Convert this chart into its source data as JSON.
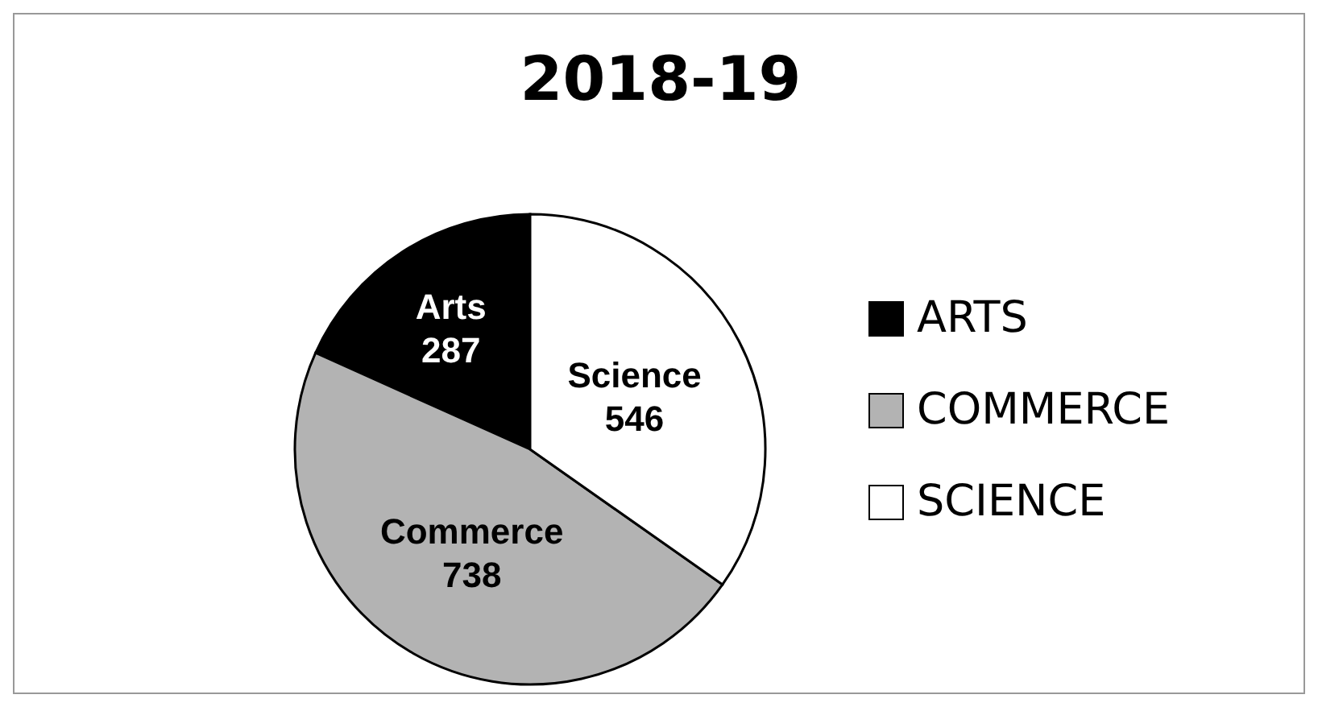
{
  "chart_data": {
    "type": "pie",
    "title": "2018-19",
    "categories": [
      "ARTS",
      "COMMERCE",
      "SCIENCE"
    ],
    "values": [
      287,
      738,
      546
    ],
    "colors": [
      "#000000",
      "#b3b3b3",
      "#ffffff"
    ],
    "value_labels": [
      "Arts\n287",
      "Commerce\n738",
      "Science\n546"
    ],
    "legend": "right"
  }
}
